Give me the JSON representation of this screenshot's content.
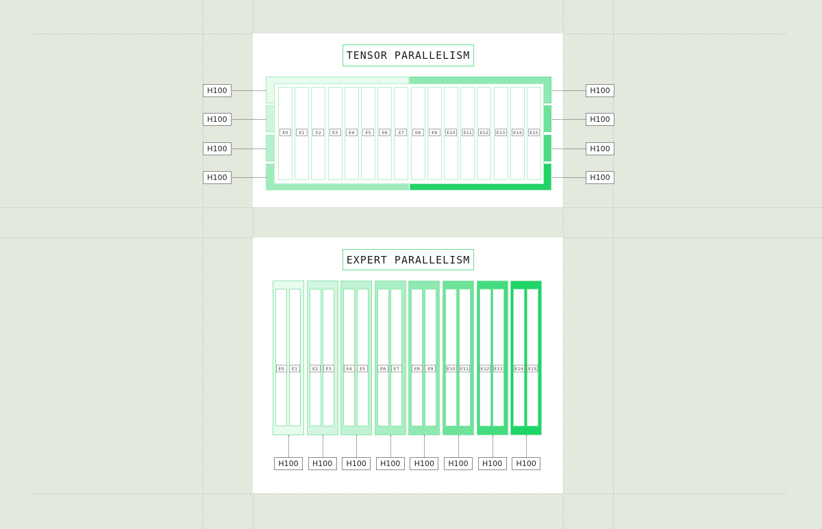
{
  "tensor": {
    "title": "TENSOR PARALLELISM",
    "experts": [
      "E0",
      "E1",
      "E2",
      "E3",
      "E4",
      "E5",
      "E6",
      "E7",
      "E8",
      "E9",
      "E10",
      "E11",
      "E12",
      "E13",
      "E14",
      "E15"
    ],
    "gpus_left": [
      "H100",
      "H100",
      "H100",
      "H100"
    ],
    "gpus_right": [
      "H100",
      "H100",
      "H100",
      "H100"
    ],
    "left_shades": [
      "#e8fbef",
      "#d0f5de",
      "#b8f0cd",
      "#a0ebbc"
    ],
    "right_shades": [
      "#8fe9b2",
      "#6fe39a",
      "#49dc80",
      "#22d366"
    ]
  },
  "expert": {
    "title": "EXPERT PARALLELISM",
    "groups": [
      {
        "experts": [
          "E0",
          "E1"
        ],
        "gpu": "H100",
        "color": "#e8fbef"
      },
      {
        "experts": [
          "E2",
          "E3"
        ],
        "gpu": "H100",
        "color": "#d2f6df"
      },
      {
        "experts": [
          "E4",
          "E5"
        ],
        "gpu": "H100",
        "color": "#bff2d2"
      },
      {
        "experts": [
          "E6",
          "E7"
        ],
        "gpu": "H100",
        "color": "#aaeec3"
      },
      {
        "experts": [
          "E8",
          "E9"
        ],
        "gpu": "H100",
        "color": "#8ee8b0"
      },
      {
        "experts": [
          "E10",
          "E11"
        ],
        "gpu": "H100",
        "color": "#6de29a"
      },
      {
        "experts": [
          "E12",
          "E13"
        ],
        "gpu": "H100",
        "color": "#44dc7f"
      },
      {
        "experts": [
          "E14",
          "E15"
        ],
        "gpu": "H100",
        "color": "#1fd567"
      }
    ]
  }
}
